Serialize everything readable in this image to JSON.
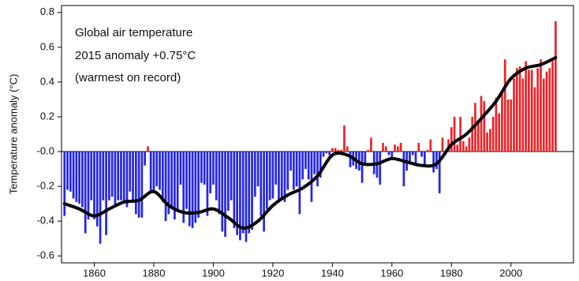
{
  "chart_data": {
    "type": "bar",
    "annotations": [
      "Global air temperature",
      "2015 anomaly +0.75°C",
      "(warmest on record)"
    ],
    "y_label": "Temperature anomaly (°C)",
    "xlim": [
      1849,
      2021
    ],
    "xticks": [
      1860,
      1880,
      1900,
      1920,
      1940,
      1960,
      1980,
      2000
    ],
    "ylim": [
      -0.64,
      0.84
    ],
    "yticks": [
      0.8,
      0.6,
      0.4,
      0.2,
      {
        "value": 0,
        "label": "-0.0"
      },
      -0.2,
      -0.4,
      -0.6
    ],
    "positive_color": "#e8262b",
    "negative_color": "#2626e0",
    "series": [
      {
        "type": "bar",
        "x": [
          1850,
          1851,
          1852,
          1853,
          1854,
          1855,
          1856,
          1857,
          1858,
          1859,
          1860,
          1861,
          1862,
          1863,
          1864,
          1865,
          1866,
          1867,
          1868,
          1869,
          1870,
          1871,
          1872,
          1873,
          1874,
          1875,
          1876,
          1877,
          1878,
          1879,
          1880,
          1881,
          1882,
          1883,
          1884,
          1885,
          1886,
          1887,
          1888,
          1889,
          1890,
          1891,
          1892,
          1893,
          1894,
          1895,
          1896,
          1897,
          1898,
          1899,
          1900,
          1901,
          1902,
          1903,
          1904,
          1905,
          1906,
          1907,
          1908,
          1909,
          1910,
          1911,
          1912,
          1913,
          1914,
          1915,
          1916,
          1917,
          1918,
          1919,
          1920,
          1921,
          1922,
          1923,
          1924,
          1925,
          1926,
          1927,
          1928,
          1929,
          1930,
          1931,
          1932,
          1933,
          1934,
          1935,
          1936,
          1937,
          1938,
          1939,
          1940,
          1941,
          1942,
          1943,
          1944,
          1945,
          1946,
          1947,
          1948,
          1949,
          1950,
          1951,
          1952,
          1953,
          1954,
          1955,
          1956,
          1957,
          1958,
          1959,
          1960,
          1961,
          1962,
          1963,
          1964,
          1965,
          1966,
          1967,
          1968,
          1969,
          1970,
          1971,
          1972,
          1973,
          1974,
          1975,
          1976,
          1977,
          1978,
          1979,
          1980,
          1981,
          1982,
          1983,
          1984,
          1985,
          1986,
          1987,
          1988,
          1989,
          1990,
          1991,
          1992,
          1993,
          1994,
          1995,
          1996,
          1997,
          1998,
          1999,
          2000,
          2001,
          2002,
          2003,
          2004,
          2005,
          2006,
          2007,
          2008,
          2009,
          2010,
          2011,
          2012,
          2013,
          2014,
          2015
        ],
        "values": [
          -0.37,
          -0.22,
          -0.23,
          -0.27,
          -0.29,
          -0.3,
          -0.32,
          -0.47,
          -0.39,
          -0.28,
          -0.39,
          -0.43,
          -0.53,
          -0.28,
          -0.48,
          -0.28,
          -0.26,
          -0.32,
          -0.28,
          -0.28,
          -0.29,
          -0.32,
          -0.23,
          -0.28,
          -0.36,
          -0.38,
          -0.38,
          -0.08,
          0.03,
          -0.24,
          -0.24,
          -0.2,
          -0.22,
          -0.29,
          -0.4,
          -0.36,
          -0.32,
          -0.39,
          -0.33,
          -0.19,
          -0.41,
          -0.33,
          -0.43,
          -0.44,
          -0.41,
          -0.38,
          -0.18,
          -0.19,
          -0.37,
          -0.24,
          -0.19,
          -0.28,
          -0.36,
          -0.46,
          -0.49,
          -0.34,
          -0.28,
          -0.44,
          -0.48,
          -0.51,
          -0.47,
          -0.52,
          -0.47,
          -0.45,
          -0.26,
          -0.2,
          -0.37,
          -0.46,
          -0.33,
          -0.28,
          -0.27,
          -0.19,
          -0.29,
          -0.27,
          -0.29,
          -0.22,
          -0.11,
          -0.22,
          -0.2,
          -0.36,
          -0.16,
          -0.1,
          -0.16,
          -0.29,
          -0.13,
          -0.2,
          -0.15,
          -0.03,
          -0.01,
          -0.02,
          0.02,
          0.02,
          0.01,
          0.01,
          0.15,
          0.03,
          -0.09,
          -0.08,
          -0.1,
          -0.11,
          -0.18,
          -0.07,
          0.01,
          0.08,
          -0.13,
          -0.15,
          -0.19,
          0.05,
          0.03,
          -0.02,
          -0.05,
          0.04,
          0.03,
          0.05,
          -0.2,
          -0.11,
          -0.06,
          -0.02,
          -0.08,
          0.05,
          -0.03,
          -0.08,
          0.01,
          0.07,
          -0.12,
          -0.1,
          -0.24,
          0.08,
          -0.02,
          0.07,
          0.14,
          0.2,
          0.04,
          0.2,
          0.06,
          0.03,
          0.08,
          0.2,
          0.28,
          0.17,
          0.32,
          0.29,
          0.11,
          0.13,
          0.2,
          0.31,
          0.22,
          0.35,
          0.53,
          0.3,
          0.3,
          0.42,
          0.48,
          0.49,
          0.42,
          0.52,
          0.47,
          0.47,
          0.37,
          0.48,
          0.53,
          0.42,
          0.46,
          0.48,
          0.52,
          0.75
        ]
      },
      {
        "type": "line",
        "color": "#000000",
        "x": [
          1850,
          1855,
          1860,
          1865,
          1870,
          1875,
          1880,
          1885,
          1890,
          1895,
          1900,
          1905,
          1910,
          1915,
          1920,
          1925,
          1930,
          1935,
          1940,
          1945,
          1950,
          1955,
          1960,
          1965,
          1970,
          1975,
          1980,
          1985,
          1990,
          1995,
          2000,
          2005,
          2010,
          2015
        ],
        "values": [
          -0.3,
          -0.33,
          -0.37,
          -0.33,
          -0.29,
          -0.28,
          -0.23,
          -0.31,
          -0.35,
          -0.35,
          -0.33,
          -0.38,
          -0.44,
          -0.4,
          -0.31,
          -0.25,
          -0.21,
          -0.14,
          -0.02,
          -0.02,
          -0.07,
          -0.07,
          -0.04,
          -0.06,
          -0.08,
          -0.07,
          0.04,
          0.1,
          0.19,
          0.29,
          0.42,
          0.48,
          0.5,
          0.54
        ]
      }
    ]
  }
}
